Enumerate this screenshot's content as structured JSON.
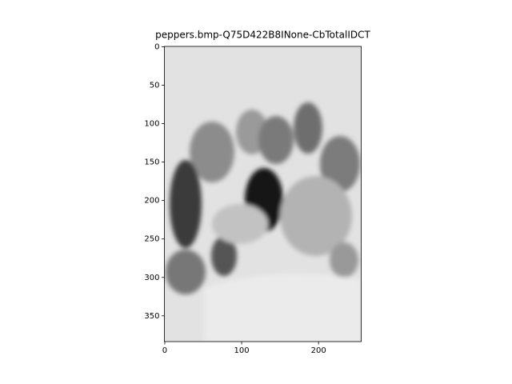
{
  "chart_data": {
    "type": "image",
    "title": "peppers.bmp-Q75D422B8INone-CbTotalIDCT",
    "colormap": "gray",
    "xlim": [
      -0.5,
      255.5
    ],
    "xticks": [
      0,
      100,
      200
    ],
    "ylim": [
      383.5,
      -0.5
    ],
    "yticks": [
      0,
      50,
      100,
      150,
      200,
      250,
      300,
      350
    ]
  }
}
